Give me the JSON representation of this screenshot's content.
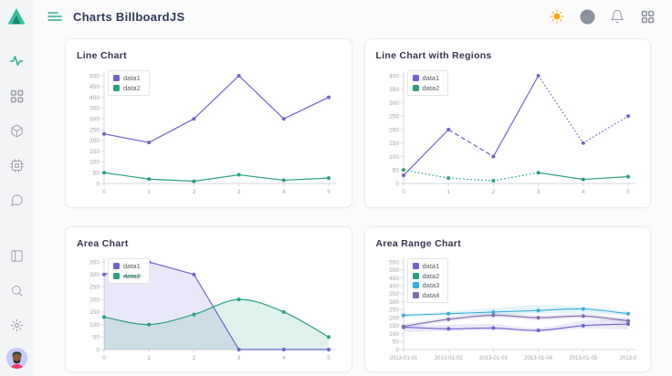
{
  "header": {
    "title": "Charts BillboardJS",
    "icons": {
      "menu": "hamburger-menu",
      "theme": "sun",
      "language": "us-flag",
      "notifications": "bell",
      "apps": "grid"
    }
  },
  "sidebar": {
    "logo": "triangle-logo",
    "items": [
      {
        "icon": "activity",
        "active": true
      },
      {
        "icon": "dashboard-grid",
        "active": false
      },
      {
        "icon": "box",
        "active": false
      },
      {
        "icon": "cpu",
        "active": false
      },
      {
        "icon": "chat-bubble",
        "active": false
      }
    ],
    "bottom_items": [
      {
        "icon": "layout-columns"
      },
      {
        "icon": "search"
      },
      {
        "icon": "settings-gear"
      }
    ],
    "avatar": "user-avatar"
  },
  "colors": {
    "accent": "#2ab094",
    "data1": "#6c63d2",
    "data2": "#27a17e",
    "data3": "#36aede",
    "data4": "#7e6cab",
    "axis": "#d5d7dc",
    "tick_text": "#9da1ab",
    "title_text": "#2e3a59"
  },
  "chart_data": [
    {
      "type": "line",
      "title": "Line Chart",
      "x_labels": [
        "0",
        "1",
        "2",
        "3",
        "4",
        "5"
      ],
      "y_ticks": [
        0,
        50,
        100,
        150,
        200,
        250,
        300,
        350,
        400,
        450,
        500
      ],
      "ylim": [
        0,
        500
      ],
      "legend_position": "inset-top-left",
      "grid": false,
      "series": [
        {
          "name": "data1",
          "color": "#6c63d2",
          "values": [
            230,
            190,
            300,
            500,
            300,
            400
          ]
        },
        {
          "name": "data2",
          "color": "#27a17e",
          "values": [
            50,
            20,
            10,
            40,
            15,
            25
          ]
        }
      ]
    },
    {
      "type": "line",
      "title": "Line Chart with Regions",
      "x_labels": [
        "0",
        "1",
        "2",
        "3",
        "4",
        "5"
      ],
      "y_ticks": [
        0,
        50,
        100,
        150,
        200,
        250,
        300,
        350,
        400
      ],
      "ylim": [
        0,
        400
      ],
      "legend_position": "inset-top-left",
      "grid": false,
      "series": [
        {
          "name": "data1",
          "color": "#6c63d2",
          "values": [
            30,
            200,
            100,
            400,
            150,
            250
          ],
          "segment_styles": [
            "solid",
            "dashed",
            "solid",
            "dotted",
            "dotted"
          ]
        },
        {
          "name": "data2",
          "color": "#27a17e",
          "values": [
            50,
            20,
            10,
            40,
            15,
            25
          ],
          "segment_styles": [
            "dotted",
            "dotted",
            "dotted",
            "solid",
            "solid"
          ]
        }
      ]
    },
    {
      "type": "area",
      "title": "Area Chart",
      "x_labels": [
        "0",
        "1",
        "2",
        "3",
        "4",
        "5"
      ],
      "y_ticks": [
        0,
        50,
        100,
        150,
        200,
        250,
        300,
        350
      ],
      "ylim": [
        0,
        350
      ],
      "legend_position": "inset-top-left",
      "grid": false,
      "series": [
        {
          "name": "data1",
          "color": "#6c63d2",
          "values": [
            300,
            350,
            300,
            0,
            0,
            0
          ],
          "area": true
        },
        {
          "name": "data2",
          "color": "#27a17e",
          "values": [
            130,
            100,
            140,
            200,
            150,
            50
          ],
          "area": true,
          "curve": "spline",
          "legend_strikethrough": true
        }
      ]
    },
    {
      "type": "area-line-range",
      "title": "Area Range Chart",
      "x_labels": [
        "2013-01-01",
        "2013-01-02",
        "2013-01-03",
        "2013-01-04",
        "2013-01-05",
        "2013-0"
      ],
      "y_ticks": [
        0,
        50,
        100,
        150,
        200,
        250,
        300,
        350,
        400,
        450,
        500,
        550
      ],
      "ylim": [
        0,
        550
      ],
      "legend_position": "inset-top-left",
      "grid": false,
      "series": [
        {
          "name": "data1",
          "color": "#6c63d2",
          "curve": "spline",
          "mid": [
            140,
            130,
            135,
            120,
            150,
            160
          ],
          "high": [
            150,
            155,
            160,
            135,
            180,
            199
          ],
          "low": [
            110,
            115,
            120,
            110,
            130,
            125
          ]
        },
        {
          "name": "data2",
          "color": "#27a17e",
          "values": []
        },
        {
          "name": "data3",
          "color": "#36aede",
          "curve": "spline",
          "mid": [
            215,
            225,
            235,
            245,
            255,
            225
          ],
          "high": [
            220,
            240,
            260,
            280,
            270,
            240
          ],
          "low": [
            205,
            215,
            215,
            225,
            225,
            215
          ]
        },
        {
          "name": "data4",
          "color": "#7e6cab",
          "curve": "spline",
          "mid": [
            145,
            190,
            215,
            200,
            210,
            180
          ],
          "high": [
            160,
            205,
            230,
            215,
            225,
            195
          ],
          "low": [
            130,
            175,
            200,
            185,
            195,
            165
          ]
        }
      ]
    }
  ]
}
